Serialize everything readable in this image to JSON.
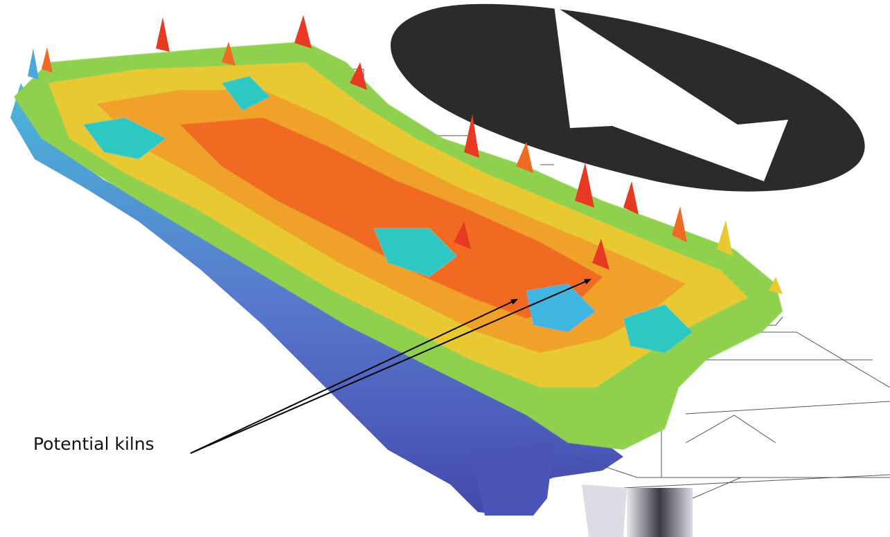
{
  "annotation": {
    "label": "Potential kilns",
    "pointer_count": 2
  },
  "surface": {
    "description_colormap": [
      "#3a4fb5",
      "#4aa8e0",
      "#27d3b8",
      "#a6e23a",
      "#f2d21b",
      "#f58a1f",
      "#e02a1e"
    ]
  },
  "north_arrow": {
    "fill": "#2b2b2b"
  },
  "colors": {
    "background": "#ffffff",
    "grid_lines": "#555555",
    "pointer": "#000000"
  }
}
